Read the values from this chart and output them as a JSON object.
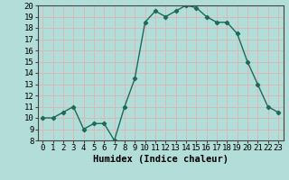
{
  "x": [
    0,
    1,
    2,
    3,
    4,
    5,
    6,
    7,
    8,
    9,
    10,
    11,
    12,
    13,
    14,
    15,
    16,
    17,
    18,
    19,
    20,
    21,
    22,
    23
  ],
  "y": [
    10,
    10,
    10.5,
    11,
    9,
    9.5,
    9.5,
    8,
    11,
    13.5,
    18.5,
    19.5,
    19,
    19.5,
    20,
    19.8,
    19,
    18.5,
    18.5,
    17.5,
    15,
    13,
    11,
    10.5
  ],
  "line_color": "#1a6b5a",
  "marker": "D",
  "marker_size": 2.2,
  "bg_color": "#b2ddd8",
  "grid_color": "#d9b8b8",
  "xlabel": "Humidex (Indice chaleur)",
  "ylim": [
    8,
    20
  ],
  "xlim_min": -0.5,
  "xlim_max": 23.5,
  "yticks": [
    8,
    9,
    10,
    11,
    12,
    13,
    14,
    15,
    16,
    17,
    18,
    19,
    20
  ],
  "xticks": [
    0,
    1,
    2,
    3,
    4,
    5,
    6,
    7,
    8,
    9,
    10,
    11,
    12,
    13,
    14,
    15,
    16,
    17,
    18,
    19,
    20,
    21,
    22,
    23
  ],
  "tick_fontsize": 6.5,
  "xlabel_fontsize": 7.5,
  "line_width": 1.0
}
